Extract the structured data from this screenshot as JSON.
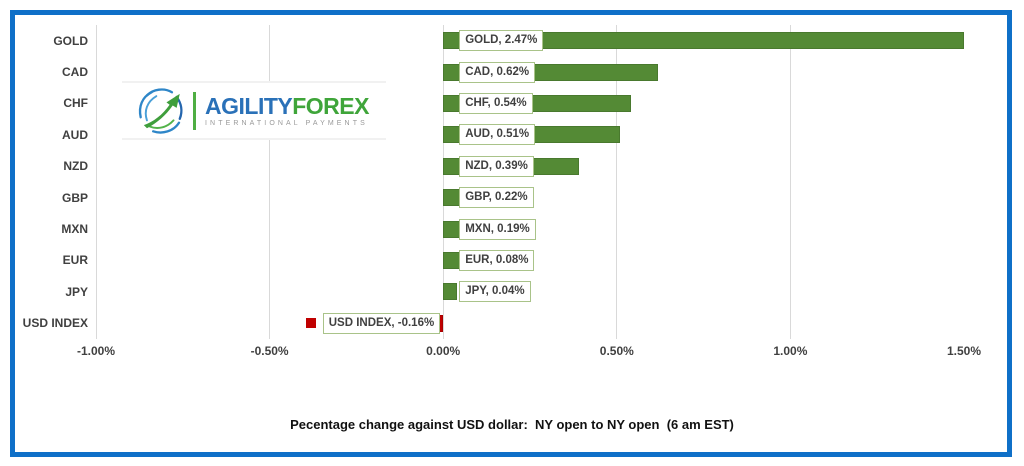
{
  "frame": {
    "border_color": "#0f70c8"
  },
  "logo": {
    "brand_primary": "AGILITY",
    "brand_secondary": "FOREX",
    "tagline": "INTERNATIONAL PAYMENTS",
    "primary_color": "#2a71b8",
    "secondary_color": "#3fa53a"
  },
  "chart_data": {
    "type": "bar",
    "orientation": "horizontal",
    "categories": [
      "GOLD",
      "CAD",
      "CHF",
      "AUD",
      "NZD",
      "GBP",
      "MXN",
      "EUR",
      "JPY",
      "USD INDEX"
    ],
    "values": [
      2.47,
      0.62,
      0.54,
      0.51,
      0.39,
      0.22,
      0.19,
      0.08,
      0.04,
      -0.16
    ],
    "data_labels": [
      "GOLD, 2.47%",
      "CAD, 0.62%",
      "CHF, 0.54%",
      "AUD, 0.51%",
      "NZD, 0.39%",
      "GBP, 0.22%",
      "MXN, 0.19%",
      "EUR, 0.08%",
      "JPY, 0.04%",
      "USD INDEX, -0.16%"
    ],
    "x_ticks": [
      "-1.00%",
      "-0.50%",
      "0.00%",
      "0.50%",
      "1.00%",
      "1.50%"
    ],
    "x_tick_values": [
      -1.0,
      -0.5,
      0.0,
      0.5,
      1.0,
      1.5
    ],
    "xlim": [
      -1.0,
      1.5
    ],
    "bar_clipped_at_xmax": [
      "GOLD"
    ],
    "legend_key_rows": [
      "USD INDEX"
    ],
    "positive_color": "#548a35",
    "negative_color": "#c00000",
    "gridline_color": "#d9d9d9",
    "label_box_border": "#a9c389",
    "text_color": "#404040",
    "grid": true,
    "legend_position": "none",
    "caption": "Pecentage change against USD dollar:  NY open to NY open  (6 am EST)"
  }
}
